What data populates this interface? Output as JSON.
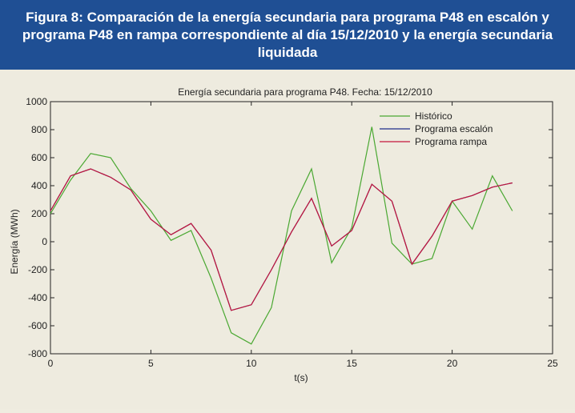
{
  "banner": {
    "title": "Figura 8: Comparación de la energía secundaria para programa P48 en escalón y programa P48 en rampa correspondiente al día 15/12/2010 y la energía secundaria liquidada"
  },
  "chart_data": {
    "type": "line",
    "title": "Energía secundaria para programa P48. Fecha: 15/12/2010",
    "xlabel": "t(s)",
    "ylabel": "Energía (MWh)",
    "xlim": [
      0,
      25
    ],
    "ylim": [
      -800,
      1000
    ],
    "xticks": [
      0,
      5,
      10,
      15,
      20,
      25
    ],
    "yticks": [
      -800,
      -600,
      -400,
      -200,
      0,
      200,
      400,
      600,
      800,
      1000
    ],
    "grid": false,
    "legend_position": "top-right",
    "series": [
      {
        "name": "Histórico",
        "color": "#4aa832",
        "x": [
          0,
          1,
          2,
          3,
          4,
          5,
          6,
          7,
          8,
          9,
          10,
          11,
          12,
          13,
          14,
          15,
          16,
          17,
          18,
          19,
          20,
          21,
          22,
          23
        ],
        "values": [
          200,
          440,
          630,
          600,
          380,
          220,
          10,
          80,
          -260,
          -650,
          -730,
          -470,
          220,
          520,
          -150,
          100,
          820,
          -10,
          -160,
          -120,
          290,
          90,
          470,
          220
        ]
      },
      {
        "name": "Programa escalón",
        "color": "#1f2d8a",
        "x": [
          0,
          1,
          2,
          3,
          4,
          5,
          6,
          7,
          8,
          9,
          10,
          11,
          12,
          13,
          14,
          15,
          16,
          17,
          18,
          19,
          20,
          21,
          22,
          23
        ],
        "values": [
          220,
          470,
          520,
          460,
          370,
          160,
          50,
          130,
          -60,
          -490,
          -450,
          -200,
          70,
          310,
          -30,
          80,
          410,
          290,
          -160,
          40,
          290,
          330,
          390,
          420
        ]
      },
      {
        "name": "Programa rampa",
        "color": "#c4163c",
        "x": [
          0,
          1,
          2,
          3,
          4,
          5,
          6,
          7,
          8,
          9,
          10,
          11,
          12,
          13,
          14,
          15,
          16,
          17,
          18,
          19,
          20,
          21,
          22,
          23
        ],
        "values": [
          220,
          470,
          520,
          460,
          370,
          160,
          50,
          130,
          -60,
          -490,
          -450,
          -200,
          70,
          310,
          -30,
          80,
          410,
          290,
          -160,
          40,
          290,
          330,
          390,
          420
        ]
      }
    ]
  }
}
